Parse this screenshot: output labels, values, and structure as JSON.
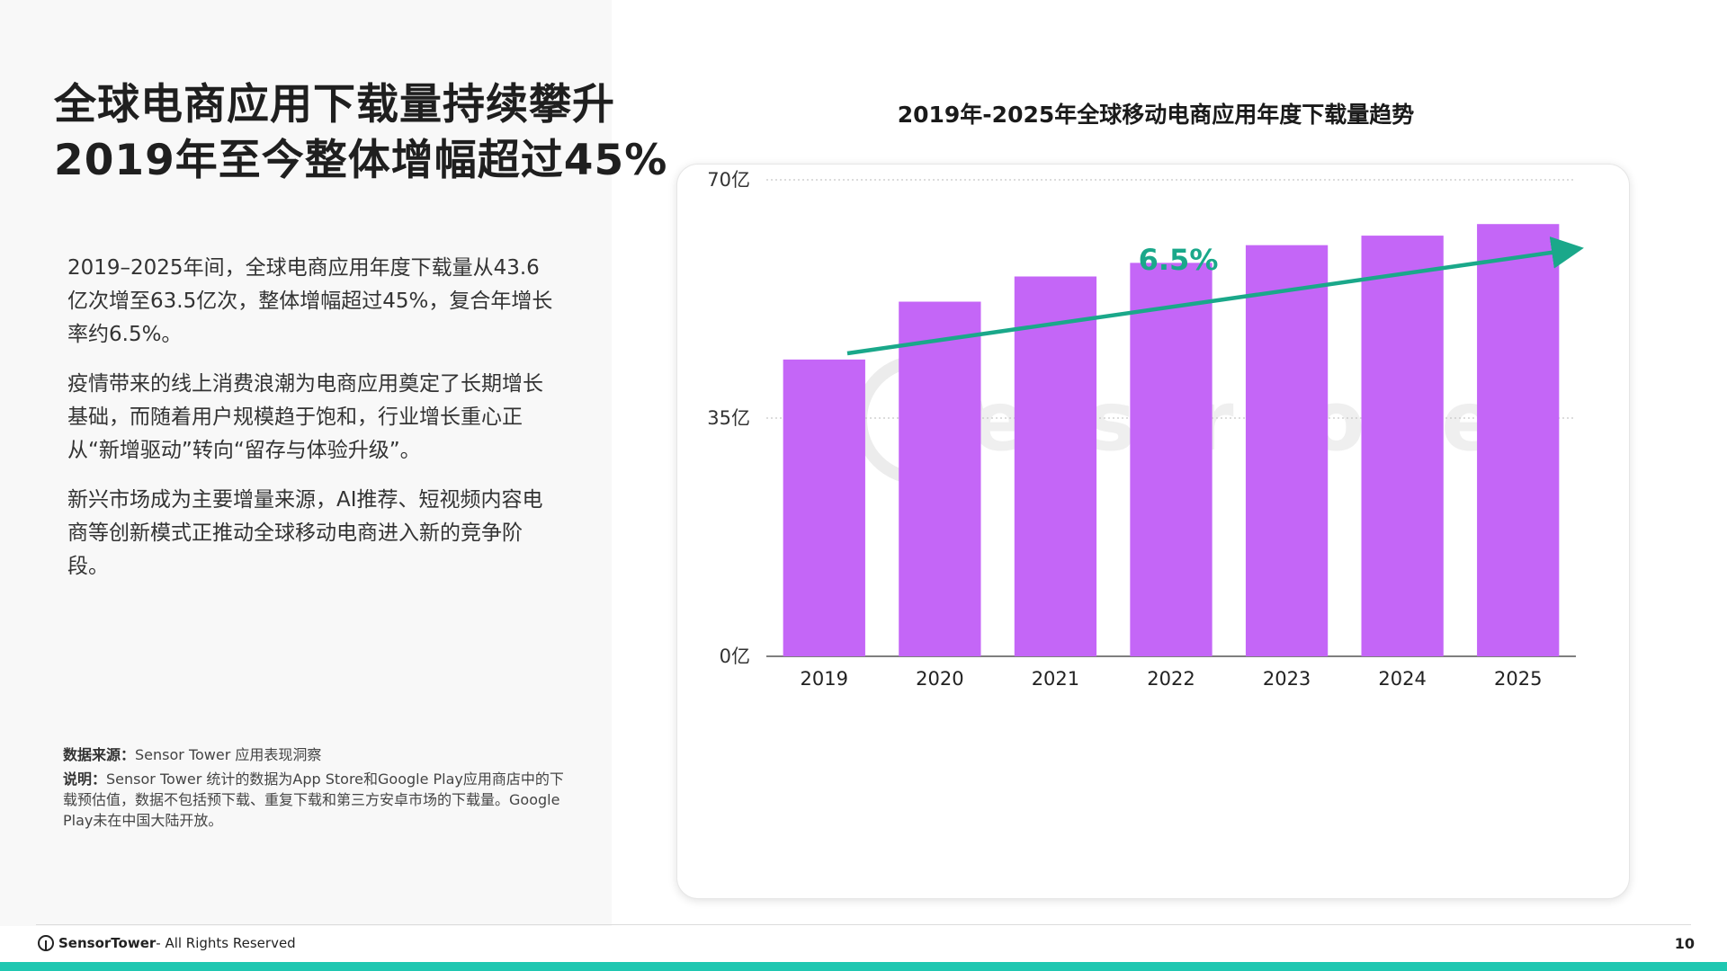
{
  "headline": {
    "line1": "全球电商应用下载量持续攀升",
    "line2": "2019年至今整体增幅超过45%"
  },
  "paragraphs": [
    "2019–2025年间，全球电商应用年度下载量从43.6亿次增至63.5亿次，整体增幅超过45%，复合年增长率约6.5%。",
    "疫情带来的线上消费浪潮为电商应用奠定了长期增长基础，而随着用户规模趋于饱和，行业增长重心正从“新增驱动”转向“留存与体验升级”。",
    "新兴市场成为主要增量来源，AI推荐、短视频内容电商等创新模式正推动全球移动电商进入新的竞争阶段。"
  ],
  "notes": {
    "source_label": "数据来源：",
    "source_text": "Sensor Tower 应用表现洞察",
    "desc_label": "说明：",
    "desc_text": "Sensor Tower 统计的数据为App Store和Google Play应用商店中的下载预估值，数据不包括预下载、重复下载和第三方安卓市场的下载量。Google Play未在中国大陆开放。"
  },
  "chart_data": {
    "type": "bar",
    "title": "2019年-2025年全球移动电商应用年度下载量趋势",
    "categories": [
      "2019",
      "2020",
      "2021",
      "2022",
      "2023",
      "2024",
      "2025"
    ],
    "values": [
      43.6,
      52.1,
      55.8,
      57.8,
      60.4,
      61.8,
      63.5
    ],
    "unit": "亿",
    "ylim": [
      0,
      70
    ],
    "yticks": [
      0,
      35,
      70
    ],
    "ytick_labels": [
      "0亿",
      "35亿",
      "70亿"
    ],
    "bar_color": "#c466f7",
    "gridlines": true,
    "annotation": {
      "text": "6.5%",
      "color": "#1aa88a"
    },
    "watermark": "Sensor Tower"
  },
  "footer": {
    "brand": "SensorTower",
    "rights": " - All Rights Reserved",
    "page_number": "10"
  },
  "colors": {
    "accent_bar": "#1fc7b1"
  }
}
